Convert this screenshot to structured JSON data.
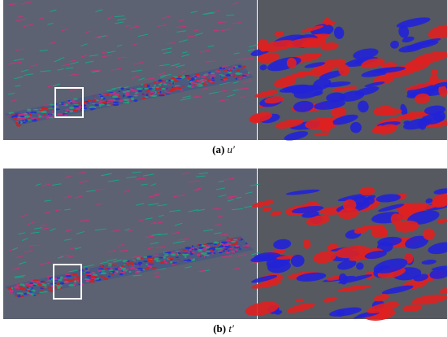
{
  "panels": [
    {
      "label": "(a)",
      "variable": "u′"
    },
    {
      "label": "(b)",
      "variable": "t′"
    }
  ]
}
